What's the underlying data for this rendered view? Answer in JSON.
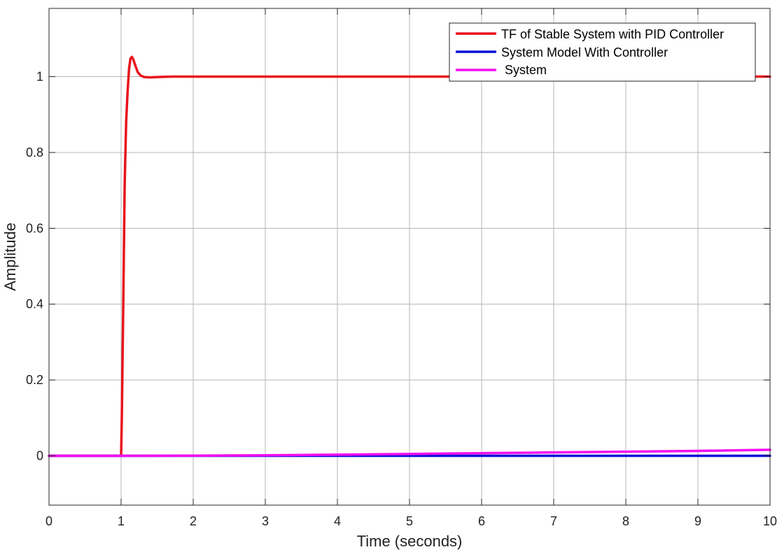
{
  "chart_data": {
    "type": "line",
    "xlabel": "Time (seconds)",
    "ylabel": "Amplitude",
    "xlim": [
      0,
      10
    ],
    "ylim": [
      -0.13,
      1.18
    ],
    "xticks": [
      0,
      1,
      2,
      3,
      4,
      5,
      6,
      7,
      8,
      9,
      10
    ],
    "yticks": [
      0,
      0.2,
      0.4,
      0.6,
      0.8,
      1
    ],
    "ytick_labels": [
      "0",
      "0.2",
      "0.4",
      "0.6",
      "0.8",
      "1"
    ],
    "grid": true,
    "legend_position": "top-right",
    "series": [
      {
        "name": "TF of Stable System with PID Controller",
        "color": "#e8141c",
        "x": [
          0,
          1.0,
          1.01,
          1.03,
          1.05,
          1.07,
          1.09,
          1.11,
          1.13,
          1.15,
          1.17,
          1.2,
          1.23,
          1.27,
          1.32,
          1.4,
          1.5,
          1.7,
          2.0,
          3,
          4,
          5,
          6,
          7,
          8,
          9,
          10
        ],
        "y": [
          0,
          0,
          0.1,
          0.4,
          0.72,
          0.88,
          0.96,
          1.02,
          1.048,
          1.052,
          1.045,
          1.028,
          1.012,
          1.003,
          0.999,
          0.998,
          0.999,
          1.0,
          1.0,
          1.0,
          1.0,
          1.0,
          1.0,
          1.0,
          1.0,
          1.0,
          1.0
        ]
      },
      {
        "name": "System Model With Controller",
        "color": "#0b12d6",
        "x": [
          0,
          1,
          2,
          3,
          4,
          5,
          6,
          7,
          8,
          9,
          10
        ],
        "y": [
          0,
          0,
          0,
          0,
          0,
          0,
          0,
          0,
          0,
          0,
          0
        ]
      },
      {
        "name": " System",
        "color": "#f20ef0",
        "x": [
          0,
          1,
          2,
          3,
          4,
          5,
          6,
          7,
          8,
          9,
          10
        ],
        "y": [
          0,
          0,
          0.0005,
          0.0015,
          0.003,
          0.005,
          0.007,
          0.009,
          0.011,
          0.013,
          0.016
        ]
      }
    ]
  }
}
